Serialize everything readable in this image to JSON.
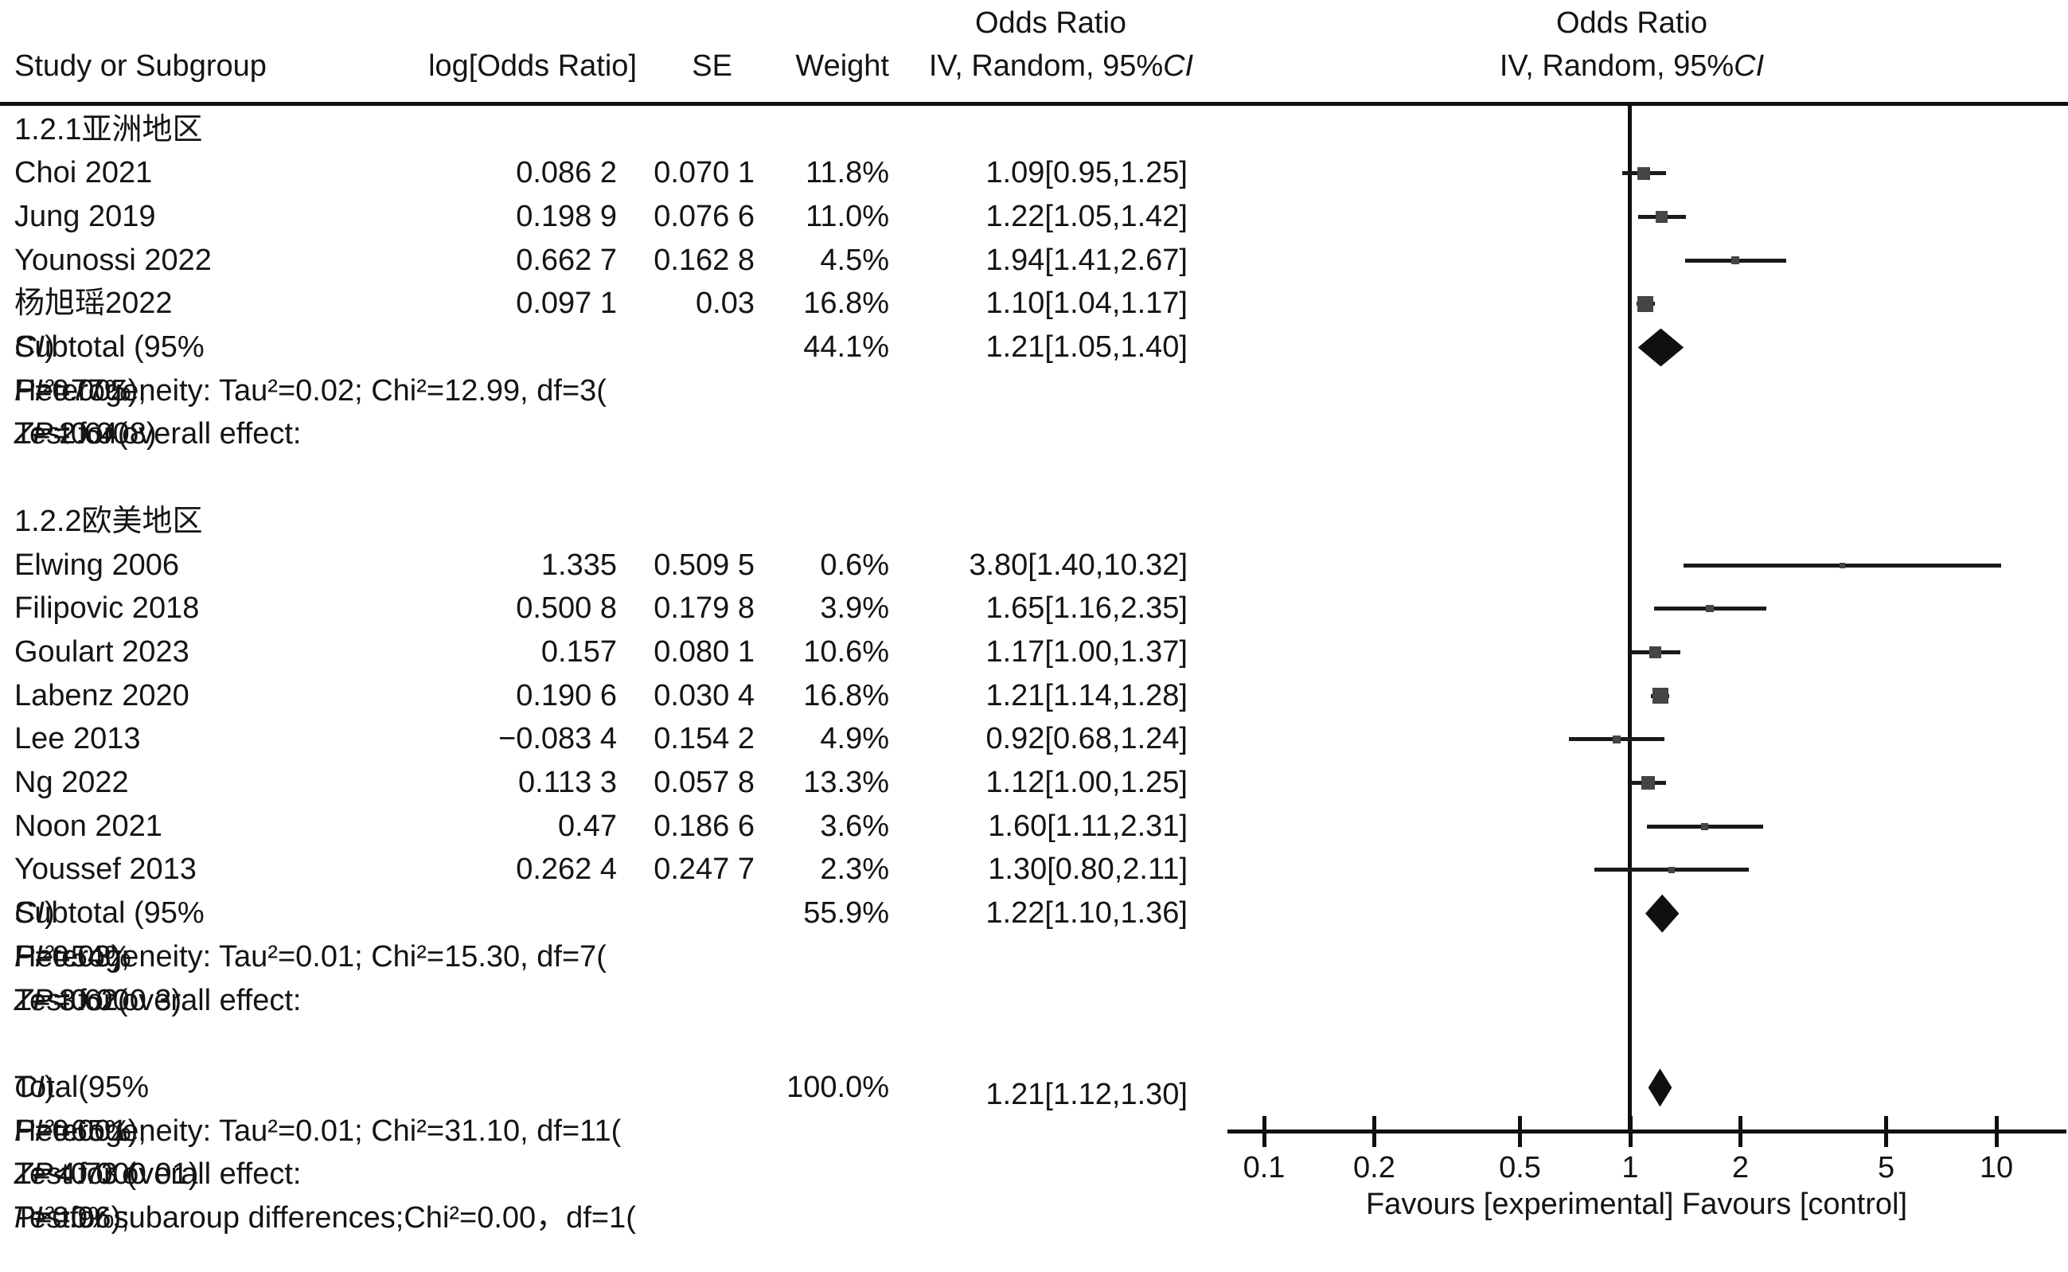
{
  "header": {
    "or_label": "Odds Ratio",
    "study_col": "Study or Subgroup",
    "logor_col": "log[Odds Ratio]",
    "se_col": "SE",
    "weight_col": "Weight",
    "method_label": [
      {
        "t": "IV, Random, 95%"
      },
      {
        "t": "CI",
        "i": true
      }
    ]
  },
  "axis": {
    "ticks": [
      {
        "label": "0.1",
        "value": 0.1
      },
      {
        "label": "0.2",
        "value": 0.2
      },
      {
        "label": "0.5",
        "value": 0.5
      },
      {
        "label": "1",
        "value": 1
      },
      {
        "label": "2",
        "value": 2
      },
      {
        "label": "5",
        "value": 5
      },
      {
        "label": "10",
        "value": 10
      }
    ],
    "favours": "Favours [experimental] Favours [control]"
  },
  "chart_data": {
    "type": "forest",
    "effect_measure": "Odds Ratio",
    "model": "IV, Random, 95%CI",
    "x_scale": "log10",
    "xlim": [
      0.1,
      10
    ],
    "sections": [
      {
        "label": "1.2.1亚洲地区",
        "studies": [
          {
            "name": "Choi 2021",
            "log_or": "0.086 2",
            "se": "0.070 1",
            "weight": "11.8%",
            "weight_pct": 11.8,
            "or_text": "1.09[0.95,1.25]",
            "or": 1.09,
            "ci_low": 0.95,
            "ci_high": 1.25
          },
          {
            "name": "Jung 2019",
            "log_or": "0.198 9",
            "se": "0.076 6",
            "weight": "11.0%",
            "weight_pct": 11.0,
            "or_text": "1.22[1.05,1.42]",
            "or": 1.22,
            "ci_low": 1.05,
            "ci_high": 1.42
          },
          {
            "name": "Younossi 2022",
            "log_or": "0.662 7",
            "se": "0.162 8",
            "weight": "4.5%",
            "weight_pct": 4.5,
            "or_text": "1.94[1.41,2.67]",
            "or": 1.94,
            "ci_low": 1.41,
            "ci_high": 2.67
          },
          {
            "name": "杨旭瑶2022",
            "log_or": "0.097 1",
            "se": "0.03",
            "weight": "16.8%",
            "weight_pct": 16.8,
            "or_text": "1.10[1.04,1.17]",
            "or": 1.1,
            "ci_low": 1.04,
            "ci_high": 1.17
          }
        ],
        "subtotal": {
          "label": [
            {
              "t": "Subtotal (95%"
            },
            {
              "t": "CI",
              "i": true
            },
            {
              "t": ")"
            }
          ],
          "weight": "44.1%",
          "weight_pct": 44.1,
          "or_text": "1.21[1.05,1.40]",
          "or": 1.21,
          "ci_low": 1.05,
          "ci_high": 1.4
        },
        "heterogeneity": [
          {
            "t": "Heterogeneity: Tau²=0.02; Chi²=12.99, df=3("
          },
          {
            "t": "P",
            "i": true
          },
          {
            "t": "=0.005); "
          },
          {
            "t": "I²",
            "i": true
          },
          {
            "t": "=77%"
          }
        ],
        "overall_effect": [
          {
            "t": "Test for overall effect: "
          },
          {
            "t": "Z",
            "i": true
          },
          {
            "t": "= 2.64("
          },
          {
            "t": "P",
            "i": true
          },
          {
            "t": "=0.008)"
          }
        ]
      },
      {
        "label": "1.2.2欧美地区",
        "studies": [
          {
            "name": "Elwing 2006",
            "log_or": "1.335",
            "se": "0.509 5",
            "weight": "0.6%",
            "weight_pct": 0.6,
            "or_text": "3.80[1.40,10.32]",
            "or": 3.8,
            "ci_low": 1.4,
            "ci_high": 10.32
          },
          {
            "name": "Filipovic 2018",
            "log_or": "0.500 8",
            "se": "0.179 8",
            "weight": "3.9%",
            "weight_pct": 3.9,
            "or_text": "1.65[1.16,2.35]",
            "or": 1.65,
            "ci_low": 1.16,
            "ci_high": 2.35
          },
          {
            "name": "Goulart 2023",
            "log_or": "0.157",
            "se": "0.080 1",
            "weight": "10.6%",
            "weight_pct": 10.6,
            "or_text": "1.17[1.00,1.37]",
            "or": 1.17,
            "ci_low": 1.0,
            "ci_high": 1.37
          },
          {
            "name": "Labenz 2020",
            "log_or": "0.190 6",
            "se": "0.030 4",
            "weight": "16.8%",
            "weight_pct": 16.8,
            "or_text": "1.21[1.14,1.28]",
            "or": 1.21,
            "ci_low": 1.14,
            "ci_high": 1.28
          },
          {
            "name": "Lee 2013",
            "log_or": "−0.083 4",
            "se": "0.154 2",
            "weight": "4.9%",
            "weight_pct": 4.9,
            "or_text": "0.92[0.68,1.24]",
            "or": 0.92,
            "ci_low": 0.68,
            "ci_high": 1.24
          },
          {
            "name": "Ng 2022",
            "log_or": "0.113 3",
            "se": "0.057 8",
            "weight": "13.3%",
            "weight_pct": 13.3,
            "or_text": "1.12[1.00,1.25]",
            "or": 1.12,
            "ci_low": 1.0,
            "ci_high": 1.25
          },
          {
            "name": "Noon 2021",
            "log_or": "0.47",
            "se": "0.186 6",
            "weight": "3.6%",
            "weight_pct": 3.6,
            "or_text": "1.60[1.11,2.31]",
            "or": 1.6,
            "ci_low": 1.11,
            "ci_high": 2.31
          },
          {
            "name": "Youssef 2013",
            "log_or": "0.262 4",
            "se": "0.247 7",
            "weight": "2.3%",
            "weight_pct": 2.3,
            "or_text": "1.30[0.80,2.11]",
            "or": 1.3,
            "ci_low": 0.8,
            "ci_high": 2.11
          }
        ],
        "subtotal": {
          "label": [
            {
              "t": "Subtotal (95%"
            },
            {
              "t": "CI",
              "i": true
            },
            {
              "t": ")"
            }
          ],
          "weight": "55.9%",
          "weight_pct": 55.9,
          "or_text": "1.22[1.10,1.36]",
          "or": 1.22,
          "ci_low": 1.1,
          "ci_high": 1.36
        },
        "heterogeneity": [
          {
            "t": "Heterogeneity: Tau²=0.01; Chi²=15.30, df=7("
          },
          {
            "t": "P",
            "i": true
          },
          {
            "t": "=0.03);"
          },
          {
            "t": "I²",
            "i": true
          },
          {
            "t": "=54%"
          }
        ],
        "overall_effect": [
          {
            "t": "Test for overall effect: "
          },
          {
            "t": "Z",
            "i": true
          },
          {
            "t": "= 3.62("
          },
          {
            "t": "P",
            "i": true
          },
          {
            "t": "=0.000 3)"
          }
        ]
      }
    ],
    "total": {
      "label": [
        {
          "t": "Total(95%"
        },
        {
          "t": "CI",
          "i": true
        },
        {
          "t": ")"
        }
      ],
      "weight": "100.0%",
      "weight_pct": 100.0,
      "or_text": "1.21[1.12,1.30]",
      "or": 1.21,
      "ci_low": 1.12,
      "ci_high": 1.3,
      "heterogeneity": [
        {
          "t": "Heterogeneity: Tau²=0.01; Chi²=31.10, df=11("
        },
        {
          "t": "P",
          "i": true
        },
        {
          "t": "=0.001);"
        },
        {
          "t": "I²",
          "i": true
        },
        {
          "t": "=65%"
        }
      ],
      "overall_effect": [
        {
          "t": "Test for overall effect: "
        },
        {
          "t": "Z",
          "i": true
        },
        {
          "t": "= 4.73 ("
        },
        {
          "t": "P",
          "i": true
        },
        {
          "t": "<0.000 01)"
        }
      ],
      "subgroup_diff": [
        {
          "t": "Testfor subaroup differences;Chi²=0.00，df=1("
        },
        {
          "t": "P",
          "i": true
        },
        {
          "t": "=0.96);"
        },
        {
          "t": "I²",
          "i": true
        },
        {
          "t": "=0%"
        }
      ]
    }
  }
}
